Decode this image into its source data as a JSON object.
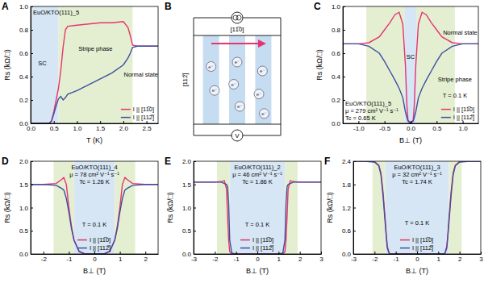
{
  "chart_data": [
    {
      "type": "line",
      "panel": "A",
      "xlabel": "T (K)",
      "ylabel": "Rs (kΩ/□)",
      "xlim": [
        0,
        2.75
      ],
      "ylim": [
        0,
        1.0
      ],
      "xticks": [
        {
          "value": 0,
          "label": "0.0"
        },
        0.5,
        {
          "value": 1,
          "label": "1.0"
        },
        1.5,
        {
          "value": 2,
          "label": "2.0"
        },
        2.5
      ],
      "yticks": [
        {
          "value": 0,
          "label": "0.0"
        },
        0.2,
        0.4,
        0.6,
        0.8,
        {
          "value": 1,
          "label": "1.0"
        }
      ],
      "legend": "lower right",
      "info": [
        "EuO/KTO(111)_5"
      ],
      "annotations": [
        {
          "text": "SC",
          "x": 0.25,
          "y": 0.5
        },
        {
          "text": "Stripe phase",
          "x": 1.4,
          "y": 0.62
        },
        {
          "text": "Normal state",
          "x": 2.38,
          "y": 0.4
        }
      ],
      "bands": [
        {
          "x0": 0,
          "x1": 0.6,
          "color": "#d6e6f4"
        },
        {
          "x0": 0.6,
          "x1": 2.2,
          "color": "#e4efd2"
        }
      ],
      "x": [
        0,
        0.4,
        0.45,
        0.5,
        0.55,
        0.6,
        0.65,
        0.7,
        0.75,
        0.8,
        1.0,
        1.25,
        1.5,
        1.75,
        2.0,
        2.1,
        2.15,
        2.2,
        2.3,
        2.5,
        2.75
      ],
      "series": [
        {
          "name": "I || [11̅0]",
          "color": "#e8336e",
          "values": [
            0,
            0,
            0.02,
            0.1,
            0.2,
            0.3,
            0.45,
            0.65,
            0.8,
            0.83,
            0.84,
            0.85,
            0.86,
            0.86,
            0.87,
            0.82,
            0.75,
            0.67,
            0.66,
            0.66,
            0.66
          ]
        },
        {
          "name": "I || [112̅]",
          "color": "#3e4f9e",
          "values": [
            0,
            0,
            0.02,
            0.08,
            0.15,
            0.21,
            0.23,
            0.2,
            0.22,
            0.25,
            0.28,
            0.33,
            0.38,
            0.43,
            0.5,
            0.56,
            0.6,
            0.65,
            0.66,
            0.66,
            0.66
          ]
        }
      ]
    },
    {
      "type": "line",
      "panel": "C",
      "xlabel": "B⊥ (T)",
      "ylabel": "Rs (kΩ/□)",
      "xlim": [
        -1.3,
        1.3
      ],
      "ylim": [
        0,
        1.0
      ],
      "xticks": [
        {
          "value": -1,
          "label": "-1.0"
        },
        -0.5,
        {
          "value": 0,
          "label": "0.0"
        },
        0.5,
        {
          "value": 1,
          "label": "1.0"
        }
      ],
      "yticks": [
        {
          "value": 0,
          "label": "0.0"
        },
        0.2,
        0.4,
        0.6,
        0.8,
        {
          "value": 1,
          "label": "1.0"
        }
      ],
      "legend": "lower right",
      "info": [
        "EuO/KTO(111)_5",
        "μ = 279 cm² V⁻¹ s⁻¹",
        "Tc = 0.65 K"
      ],
      "annotations": [
        {
          "text": "SC",
          "x": 0,
          "y": 0.55
        },
        {
          "text": "Stripe phase",
          "x": 0.85,
          "y": 0.36
        },
        {
          "text": "Normal state",
          "x": 0.95,
          "y": 0.76
        },
        {
          "text": "T = 0.1 K",
          "x": 0.85,
          "y": 0.22
        }
      ],
      "bands": [
        {
          "x0": -0.12,
          "x1": 0.12,
          "color": "#d6e6f4"
        },
        {
          "x0": -0.85,
          "x1": -0.12,
          "color": "#e4efd2"
        },
        {
          "x0": 0.12,
          "x1": 0.85,
          "color": "#e4efd2"
        }
      ],
      "x": [
        -1.3,
        -1.0,
        -0.8,
        -0.6,
        -0.5,
        -0.4,
        -0.3,
        -0.22,
        -0.15,
        -0.1,
        -0.07,
        -0.05,
        0,
        0.05,
        0.07,
        0.1,
        0.15,
        0.22,
        0.3,
        0.4,
        0.5,
        0.6,
        0.8,
        1.0,
        1.3
      ],
      "series": [
        {
          "name": "I || [11̅0]",
          "color": "#e8336e",
          "values": [
            0.68,
            0.68,
            0.69,
            0.74,
            0.8,
            0.86,
            0.93,
            0.95,
            0.85,
            0.5,
            0.15,
            0.03,
            0,
            0.03,
            0.15,
            0.5,
            0.85,
            0.95,
            0.93,
            0.86,
            0.8,
            0.74,
            0.69,
            0.68,
            0.68
          ]
        },
        {
          "name": "I || [112̅]",
          "color": "#3e4f9e",
          "values": [
            0.68,
            0.68,
            0.66,
            0.6,
            0.53,
            0.45,
            0.37,
            0.3,
            0.22,
            0.1,
            0.05,
            0.02,
            0,
            0.02,
            0.05,
            0.1,
            0.22,
            0.3,
            0.37,
            0.45,
            0.53,
            0.6,
            0.66,
            0.68,
            0.68
          ]
        }
      ]
    },
    {
      "type": "line",
      "panel": "D",
      "xlabel": "B⊥ (T)",
      "ylabel": "Rs (kΩ/□)",
      "xlim": [
        -2.5,
        2.5
      ],
      "ylim": [
        0,
        2.0
      ],
      "xticks": [
        -2,
        -1,
        0,
        1,
        2
      ],
      "yticks": [
        {
          "value": 0,
          "label": "0.0"
        },
        0.5,
        {
          "value": 1,
          "label": "1.0"
        },
        1.5,
        {
          "value": 2,
          "label": "2.0"
        }
      ],
      "legend": "lower center",
      "info": [
        "EuO/KTO(111)_4",
        "μ = 78 cm² V⁻¹ s⁻¹",
        "Tc = 1.26 K"
      ],
      "annotations": [
        {
          "text": "T = 0.1 K",
          "x": 0,
          "y": 0.6
        }
      ],
      "bands": [
        {
          "x0": -0.8,
          "x1": 0.8,
          "color": "#d6e6f4"
        },
        {
          "x0": -1.6,
          "x1": -0.8,
          "color": "#e4efd2"
        },
        {
          "x0": 0.8,
          "x1": 1.6,
          "color": "#e4efd2"
        }
      ],
      "x": [
        -2.5,
        -2,
        -1.5,
        -1.3,
        -1.2,
        -1.1,
        -1.0,
        -0.9,
        -0.8,
        -0.6,
        -0.4,
        0,
        0.4,
        0.6,
        0.8,
        0.9,
        1.0,
        1.1,
        1.2,
        1.3,
        1.5,
        2,
        2.5
      ],
      "series": [
        {
          "name": "I || [11̅0]",
          "color": "#e8336e",
          "values": [
            1.5,
            1.5,
            1.52,
            1.6,
            1.65,
            1.5,
            1.0,
            0.6,
            0.3,
            0.05,
            0,
            0,
            0,
            0.05,
            0.3,
            0.6,
            1.0,
            1.5,
            1.65,
            1.6,
            1.52,
            1.5,
            1.5
          ]
        },
        {
          "name": "I || [112̅]",
          "color": "#3e4f9e",
          "values": [
            1.5,
            1.5,
            1.48,
            1.42,
            1.38,
            1.2,
            0.9,
            0.55,
            0.3,
            0.06,
            0.01,
            0,
            0.01,
            0.06,
            0.3,
            0.55,
            0.9,
            1.2,
            1.38,
            1.42,
            1.48,
            1.5,
            1.5
          ]
        }
      ]
    },
    {
      "type": "line",
      "panel": "E",
      "xlabel": "B⊥ (T)",
      "ylabel": "Rs (kΩ/□)",
      "xlim": [
        -3,
        3
      ],
      "ylim": [
        0,
        2.0
      ],
      "xticks": [
        -3,
        -2,
        -1,
        0,
        1,
        2,
        3
      ],
      "yticks": [
        {
          "value": 0,
          "label": "0.0"
        },
        0.5,
        {
          "value": 1,
          "label": "1.0"
        },
        1.5,
        {
          "value": 2,
          "label": "2.0"
        }
      ],
      "legend": "lower center",
      "info": [
        "EuO/KTO(111)_2",
        "μ = 46 cm² V⁻¹ s⁻¹",
        "Tc = 1.86 K"
      ],
      "annotations": [
        {
          "text": "T = 0.1 K",
          "x": 0,
          "y": 0.6
        }
      ],
      "bands": [
        {
          "x0": -1.3,
          "x1": 1.3,
          "color": "#d6e6f4"
        },
        {
          "x0": -1.9,
          "x1": -1.3,
          "color": "#e4efd2"
        },
        {
          "x0": 1.3,
          "x1": 1.9,
          "color": "#e4efd2"
        }
      ],
      "x": [
        -3,
        -2,
        -1.7,
        -1.55,
        -1.45,
        -1.4,
        -1.35,
        -1.3,
        -1.2,
        -1.0,
        0,
        1.0,
        1.2,
        1.3,
        1.35,
        1.4,
        1.45,
        1.55,
        1.7,
        2,
        3
      ],
      "series": [
        {
          "name": "I || [11̅0]",
          "color": "#e8336e",
          "values": [
            1.55,
            1.55,
            1.56,
            1.58,
            1.4,
            0.8,
            0.3,
            0.05,
            0,
            0,
            0,
            0,
            0,
            0.05,
            0.3,
            0.8,
            1.4,
            1.58,
            1.56,
            1.55,
            1.55
          ]
        },
        {
          "name": "I || [112̅]",
          "color": "#3e4f9e",
          "values": [
            1.55,
            1.55,
            1.55,
            1.52,
            1.5,
            1.45,
            1.1,
            0.3,
            0.02,
            0,
            0,
            0,
            0.02,
            0.3,
            1.1,
            1.45,
            1.5,
            1.52,
            1.55,
            1.55,
            1.55
          ]
        }
      ]
    },
    {
      "type": "line",
      "panel": "F",
      "xlabel": "B⊥ (T)",
      "ylabel": "Rs (kΩ/□)",
      "xlim": [
        -3,
        3
      ],
      "ylim": [
        0,
        2.4
      ],
      "xticks": [
        -3,
        -2,
        -1,
        0,
        1,
        2,
        3
      ],
      "yticks": [
        {
          "value": 0,
          "label": "0.0"
        },
        0.6,
        1.2,
        1.8,
        2.4
      ],
      "legend": "lower center",
      "info": [
        "EuO/KTO(111)_3",
        "μ = 32 cm² V⁻¹ s⁻¹",
        "Tc = 1.74 K"
      ],
      "annotations": [
        {
          "text": "T = 0.1 K",
          "x": 0,
          "y": 0.75
        }
      ],
      "bands": [
        {
          "x0": -1.5,
          "x1": 1.5,
          "color": "#d6e6f4"
        },
        {
          "x0": -2.1,
          "x1": -1.5,
          "color": "#e4efd2"
        },
        {
          "x0": 1.5,
          "x1": 2.1,
          "color": "#e4efd2"
        }
      ],
      "x": [
        -3,
        -2.5,
        -2,
        -1.8,
        -1.7,
        -1.6,
        -1.5,
        -1.45,
        -1.4,
        -1.3,
        0,
        1.3,
        1.4,
        1.45,
        1.5,
        1.6,
        1.7,
        1.8,
        2,
        2.5,
        3
      ],
      "series": [
        {
          "name": "I || [11̅0]",
          "color": "#e8336e",
          "values": [
            2.4,
            2.4,
            2.39,
            2.3,
            2.1,
            1.6,
            0.9,
            0.5,
            0.2,
            0,
            0,
            0,
            0.2,
            0.5,
            0.9,
            1.6,
            2.1,
            2.3,
            2.39,
            2.4,
            2.4
          ]
        },
        {
          "name": "I || [112̅]",
          "color": "#3e4f9e",
          "values": [
            2.4,
            2.4,
            2.38,
            2.28,
            2.05,
            1.5,
            0.8,
            0.45,
            0.15,
            0,
            0,
            0,
            0.15,
            0.45,
            0.8,
            1.5,
            2.05,
            2.28,
            2.38,
            2.4,
            2.4
          ]
        }
      ]
    }
  ],
  "diagram": {
    "panel": "B",
    "current_direction": "[11̅0]",
    "transverse_direction": "[112̅]",
    "voltage": "V",
    "electron": "e⁻"
  }
}
